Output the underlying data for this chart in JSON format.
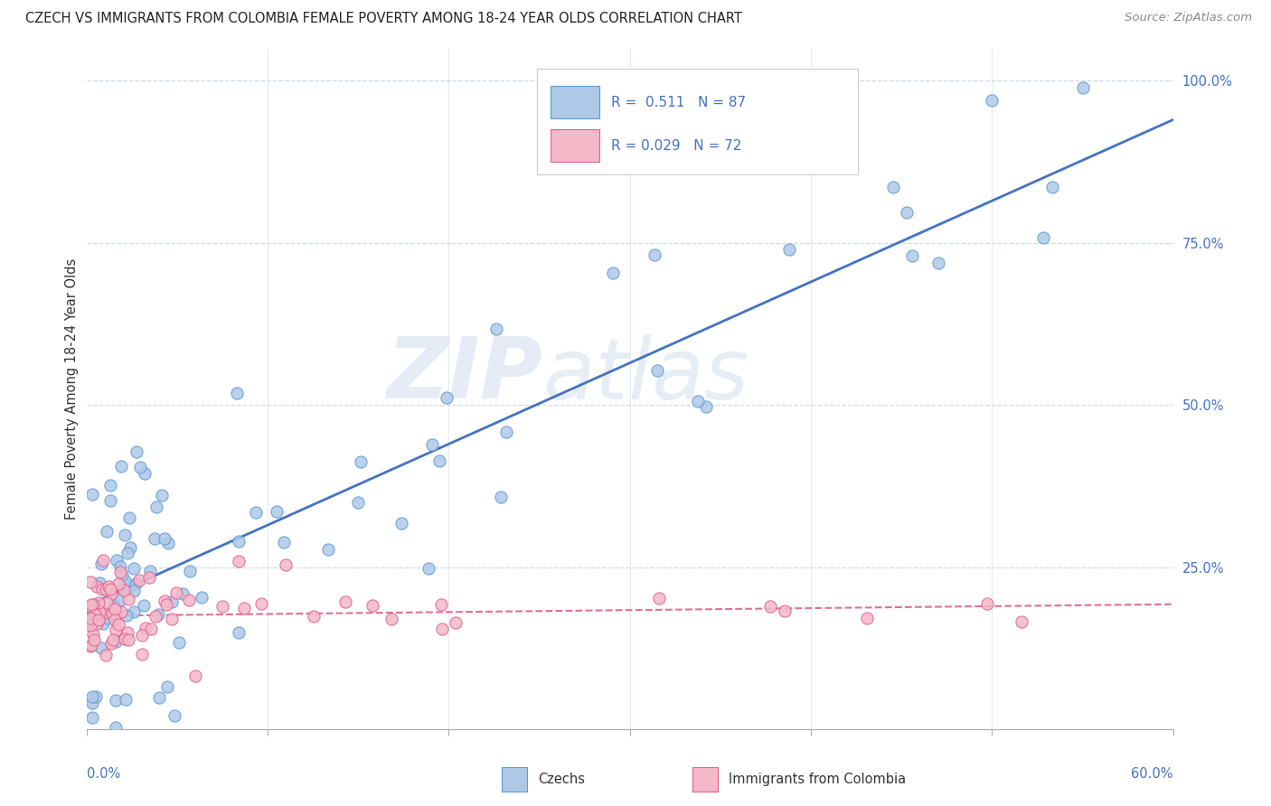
{
  "title": "CZECH VS IMMIGRANTS FROM COLOMBIA FEMALE POVERTY AMONG 18-24 YEAR OLDS CORRELATION CHART",
  "source": "Source: ZipAtlas.com",
  "ylabel": "Female Poverty Among 18-24 Year Olds",
  "right_ytick_labels": [
    "100.0%",
    "75.0%",
    "50.0%",
    "25.0%"
  ],
  "right_ytick_values": [
    1.0,
    0.75,
    0.5,
    0.25
  ],
  "watermark_line1": "ZIP",
  "watermark_line2": "atlas",
  "legend_label_czech": "Czechs",
  "legend_label_colombia": "Immigrants from Colombia",
  "czech_fill_color": "#aec8e8",
  "czech_edge_color": "#5b9bd5",
  "colombia_fill_color": "#f4b8c8",
  "colombia_edge_color": "#e06090",
  "czech_line_color": "#4472c4",
  "colombia_line_color": "#e07090",
  "background_color": "#ffffff",
  "xlim": [
    0.0,
    0.6
  ],
  "ylim": [
    0.0,
    1.05
  ],
  "grid_color": "#d0d8e8",
  "legend_R_color": "#4472c4"
}
